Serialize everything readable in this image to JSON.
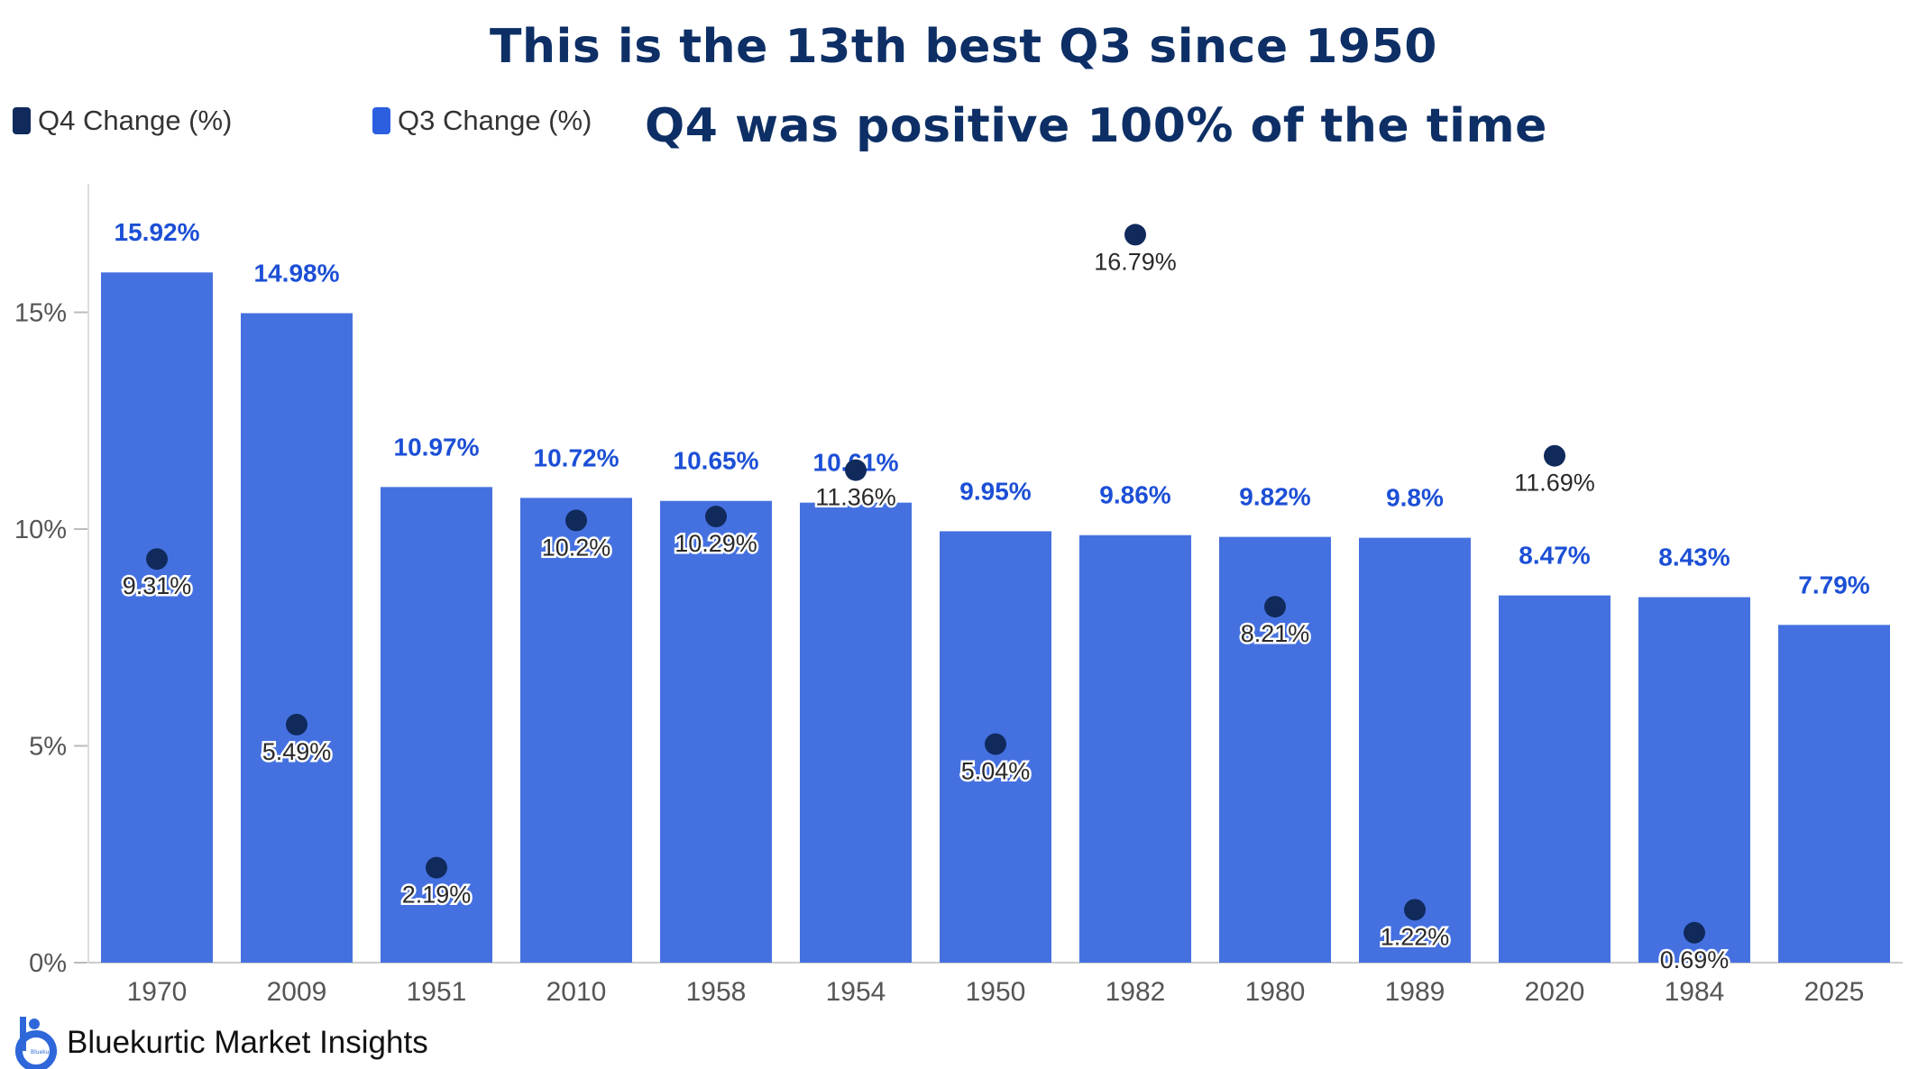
{
  "chart_data": {
    "type": "bar",
    "title": "This is the 13th best Q3 since 1950",
    "subtitle": "Q4 was positive 100% of the time",
    "categories": [
      "1970",
      "2009",
      "1951",
      "2010",
      "1958",
      "1954",
      "1950",
      "1982",
      "1980",
      "1989",
      "2020",
      "1984",
      "2025"
    ],
    "series": [
      {
        "name": "Q3 Change (%)",
        "kind": "bar",
        "color": "#4571e0",
        "values": [
          15.92,
          14.98,
          10.97,
          10.72,
          10.65,
          10.61,
          9.95,
          9.86,
          9.82,
          9.8,
          8.47,
          8.43,
          7.79
        ],
        "labels": [
          "15.92%",
          "14.98%",
          "10.97%",
          "10.72%",
          "10.65%",
          "10.61%",
          "9.95%",
          "9.86%",
          "9.82%",
          "9.8%",
          "8.47%",
          "8.43%",
          "7.79%"
        ]
      },
      {
        "name": "Q4 Change (%)",
        "kind": "point",
        "color": "#102a5c",
        "values": [
          9.31,
          5.49,
          2.19,
          10.2,
          10.29,
          11.36,
          5.04,
          16.79,
          8.21,
          1.22,
          11.69,
          0.69,
          null
        ],
        "labels": [
          "9.31%",
          "5.49%",
          "2.19%",
          "10.2%",
          "10.29%",
          "11.36%",
          "5.04%",
          "16.79%",
          "8.21%",
          "1.22%",
          "11.69%",
          "0.69%",
          null
        ]
      }
    ],
    "ylim": [
      0,
      18
    ],
    "yticks": [
      0,
      5,
      10,
      15
    ],
    "ytick_labels": [
      "0%",
      "5%",
      "10%",
      "15%"
    ],
    "xlabel": "",
    "ylabel": "",
    "grid": false,
    "legend": "top-left"
  },
  "legend": {
    "q4_label": "Q4 Change (%)",
    "q4_color": "#102a5c",
    "q3_label": "Q3 Change (%)",
    "q3_color": "#2c5fe0"
  },
  "brand": {
    "name": "Bluekurtic Market Insights",
    "icon": "bluekurtic-logo-icon",
    "logo_text": "Bluekurtic"
  }
}
